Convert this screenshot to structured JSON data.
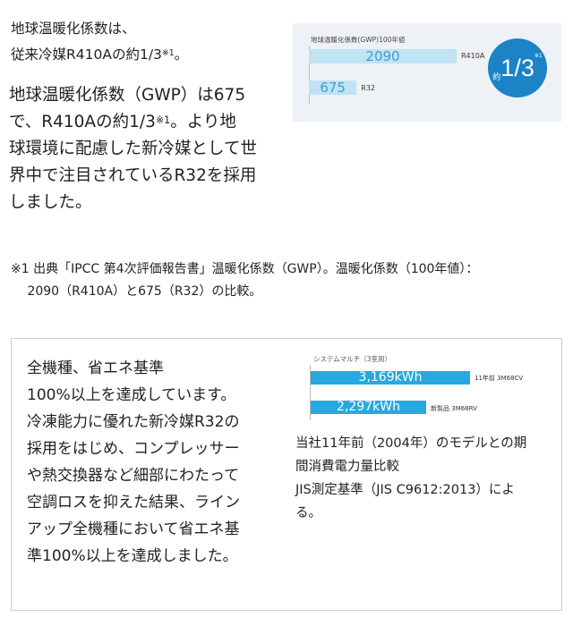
{
  "lead": {
    "lines": [
      "地球温暖化係数は、",
      "従来冷媒R410Aの約1/3"
    ],
    "sup": "※1",
    "end": "。"
  },
  "paragraph": {
    "lines": [
      [
        "地球温暖化係数（GWP）は675"
      ],
      [
        "で、R410Aの約1/3",
        "※1",
        "。より地"
      ],
      [
        "球環境に配慮した新冷媒として世"
      ],
      [
        "界中で注目されているR32を採用"
      ],
      [
        "しました。"
      ]
    ]
  },
  "chart1": {
    "type": "bar",
    "title": "地球温暖化係数(GWP)100年値",
    "categories": [
      "R410A",
      "R32"
    ],
    "values": [
      2090,
      675
    ],
    "value_labels": [
      "2090",
      "675"
    ],
    "ratio_prefix": "約",
    "ratio": "1/3",
    "ratio_note": "※1",
    "colors": {
      "bar": "#bfe3f3",
      "text": "#3c9fd6",
      "circle": "#1d83c7",
      "bg": "#eef2f6"
    }
  },
  "footnote": {
    "lines": [
      "※1 出典「IPCC 第4次評価報告書」温暖化係数（GWP）。温暖化係数（100年値）：",
      "　 2090（R410A）と675（R32）の比較。"
    ]
  },
  "section2": {
    "lines": [
      "全機種、省エネ基準",
      "100%以上を達成しています。",
      "冷凍能力に優れた新冷媒R32の",
      "採用をはじめ、コンプレッサー",
      "や熱交換器など細部にわたって",
      "空調ロスを抑えた結果、ライン",
      "アップ全機種において省エネ基",
      "準100%以上を達成しました。"
    ],
    "caption": [
      "当社11年前（2004年）のモデルとの期",
      "間消費電力量比較",
      "JIS測定基準（JIS C9612:2013）によ",
      "る。"
    ]
  },
  "chart_data": {
    "type": "bar",
    "title": "システムマルチ（3室用）",
    "categories": [
      "11年前 3M68CV",
      "新製品 3M68RV"
    ],
    "values": [
      3169,
      2297
    ],
    "value_labels": [
      "3,169kWh",
      "2,297kWh"
    ],
    "unit": "kWh",
    "color": "#27a8e0"
  }
}
